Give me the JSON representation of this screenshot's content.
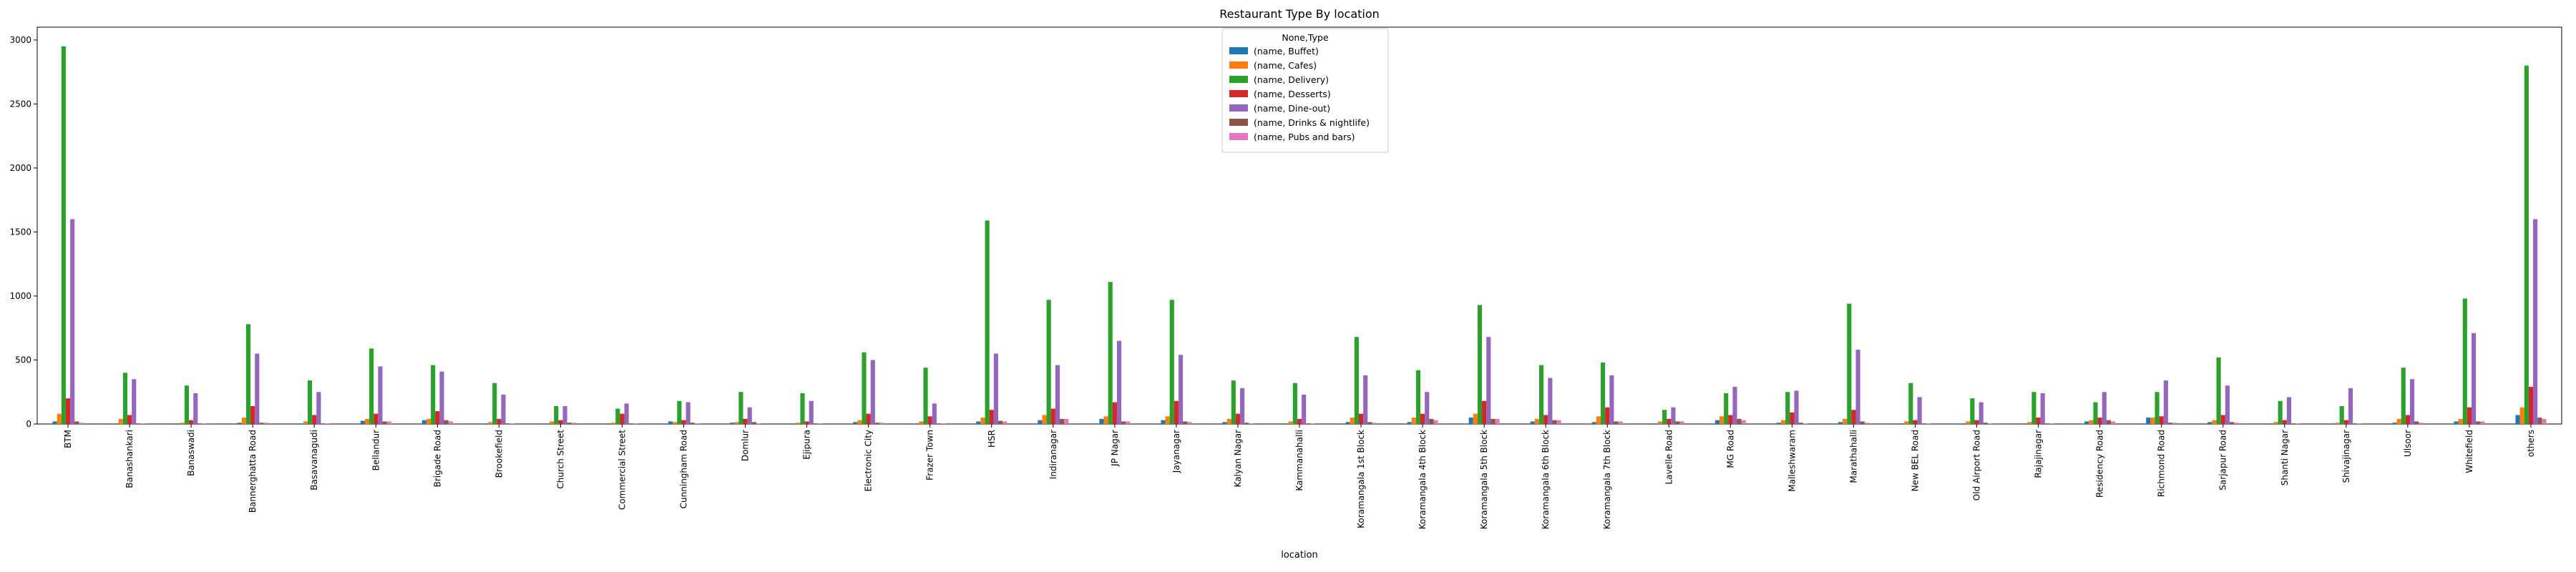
{
  "chart_data": {
    "type": "bar",
    "title": "Restaurant Type By location",
    "xlabel": "location",
    "ylabel": "",
    "ylim": [
      0,
      3100
    ],
    "yticks": [
      0,
      500,
      1000,
      1500,
      2000,
      2500,
      3000
    ],
    "legend_title": "None,Type",
    "legend_position": "top-center",
    "categories": [
      "BTM",
      "Banashankari",
      "Banaswadi",
      "Bannerghatta Road",
      "Basavanagudi",
      "Bellandur",
      "Brigade Road",
      "Brookefield",
      "Church Street",
      "Commercial Street",
      "Cunningham Road",
      "Domlur",
      "Ejipura",
      "Electronic City",
      "Frazer Town",
      "HSR",
      "Indiranagar",
      "JP Nagar",
      "Jayanagar",
      "Kalyan Nagar",
      "Kammanahalli",
      "Koramangala 1st Block",
      "Koramangala 4th Block",
      "Koramangala 5th Block",
      "Koramangala 6th Block",
      "Koramangala 7th Block",
      "Lavelle Road",
      "MG Road",
      "Malleshwaram",
      "Marathahalli",
      "New BEL Road",
      "Old Airport Road",
      "Rajajinagar",
      "Residency Road",
      "Richmond Road",
      "Sarjapur Road",
      "Shanti Nagar",
      "Shivajinagar",
      "Ulsoor",
      "Whitefield",
      "others"
    ],
    "series": [
      {
        "name": "(name, Buffet)",
        "color": "#1f77b4",
        "values": [
          20,
          5,
          5,
          10,
          5,
          25,
          30,
          5,
          5,
          5,
          20,
          10,
          5,
          15,
          5,
          20,
          30,
          40,
          30,
          15,
          5,
          15,
          15,
          50,
          20,
          15,
          5,
          30,
          10,
          15,
          5,
          5,
          5,
          20,
          50,
          15,
          5,
          5,
          10,
          20,
          70
        ]
      },
      {
        "name": "(name, Cafes)",
        "color": "#ff7f0e",
        "values": [
          80,
          40,
          10,
          50,
          20,
          40,
          40,
          15,
          20,
          10,
          15,
          15,
          10,
          30,
          20,
          50,
          70,
          60,
          60,
          40,
          20,
          50,
          50,
          80,
          40,
          60,
          20,
          60,
          30,
          40,
          20,
          20,
          15,
          30,
          50,
          30,
          15,
          10,
          40,
          40,
          130
        ]
      },
      {
        "name": "(name, Delivery)",
        "color": "#2ca02c",
        "values": [
          2950,
          400,
          300,
          780,
          340,
          590,
          460,
          320,
          140,
          120,
          180,
          250,
          240,
          560,
          440,
          1590,
          970,
          1110,
          970,
          340,
          320,
          680,
          420,
          930,
          460,
          480,
          110,
          240,
          250,
          940,
          320,
          200,
          250,
          170,
          250,
          520,
          180,
          140,
          440,
          980,
          2800
        ]
      },
      {
        "name": "(name, Desserts)",
        "color": "#d62728",
        "values": [
          200,
          70,
          30,
          140,
          70,
          80,
          100,
          40,
          30,
          80,
          30,
          40,
          20,
          80,
          60,
          110,
          120,
          170,
          180,
          80,
          40,
          80,
          80,
          180,
          70,
          130,
          40,
          70,
          90,
          110,
          30,
          30,
          50,
          50,
          60,
          70,
          30,
          30,
          70,
          130,
          290
        ]
      },
      {
        "name": "(name, Dine-out)",
        "color": "#9467bd",
        "values": [
          1600,
          350,
          240,
          550,
          250,
          450,
          410,
          230,
          140,
          160,
          170,
          130,
          180,
          500,
          160,
          550,
          460,
          650,
          540,
          280,
          230,
          380,
          250,
          680,
          360,
          380,
          130,
          290,
          260,
          580,
          210,
          170,
          240,
          250,
          340,
          300,
          210,
          280,
          350,
          710,
          1600
        ]
      },
      {
        "name": "(name, Drinks & nightlife)",
        "color": "#8c564b",
        "values": [
          20,
          5,
          5,
          10,
          5,
          20,
          30,
          5,
          10,
          5,
          10,
          15,
          5,
          10,
          5,
          25,
          40,
          20,
          20,
          10,
          5,
          15,
          40,
          40,
          30,
          20,
          20,
          40,
          10,
          20,
          5,
          10,
          5,
          30,
          10,
          15,
          5,
          5,
          20,
          20,
          50
        ]
      },
      {
        "name": "(name, Pubs and bars)",
        "color": "#e377c2",
        "values": [
          10,
          5,
          5,
          10,
          5,
          20,
          20,
          5,
          10,
          5,
          5,
          5,
          5,
          10,
          5,
          20,
          40,
          20,
          15,
          5,
          5,
          10,
          30,
          40,
          30,
          20,
          20,
          30,
          5,
          10,
          5,
          5,
          5,
          20,
          10,
          10,
          5,
          5,
          10,
          20,
          40
        ]
      }
    ]
  }
}
